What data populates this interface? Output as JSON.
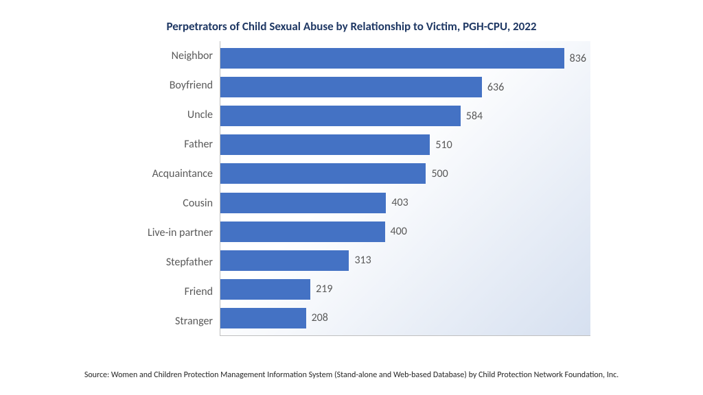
{
  "chart": {
    "type": "bar",
    "orientation": "horizontal",
    "title": "Perpetrators of Child Sexual Abuse by Relationship to Victim, PGH-CPU, 2022",
    "title_color": "#1f3864",
    "title_fontsize": 17,
    "categories": [
      "Neighbor",
      "Boyfriend",
      "Uncle",
      "Father",
      "Acquaintance",
      "Cousin",
      "Live-in partner",
      "Stepfather",
      "Friend",
      "Stranger"
    ],
    "values": [
      836,
      636,
      584,
      510,
      500,
      403,
      400,
      313,
      219,
      208
    ],
    "bar_color": "#4472c4",
    "value_label_color": "#595959",
    "value_label_fontsize": 16,
    "category_label_color": "#595959",
    "category_label_fontsize": 16,
    "xlim": [
      0,
      900
    ],
    "plot_bg_gradient_start": "#ffffff",
    "plot_bg_gradient_end": "#d6e0f0",
    "axis_line_color": "#bfbfbf",
    "bar_height_ratio": 0.7
  },
  "source": {
    "text": "Source: Women and Children Protection Management Information System (Stand-alone and Web-based Database) by Child Protection Network Foundation, Inc.",
    "color": "#262626",
    "fontsize": 12
  }
}
